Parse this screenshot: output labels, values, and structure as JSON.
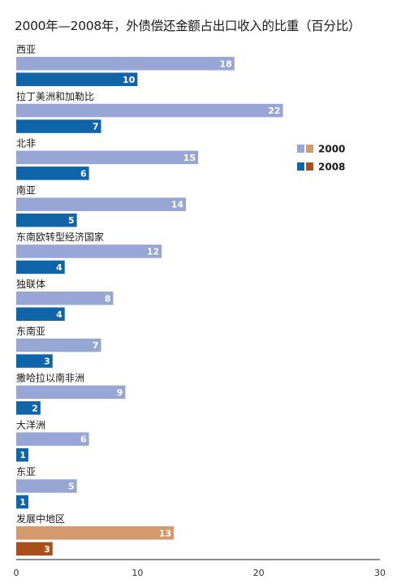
{
  "chart_data": {
    "type": "bar",
    "orientation": "horizontal",
    "title": "2000年—2008年，外债偿还金额占出口收入的比重（百分比）",
    "categories": [
      "西亚",
      "拉丁美洲和加勒比",
      "北非",
      "南亚",
      "东南欧转型经济国家",
      "独联体",
      "东南亚",
      "撒哈拉以南非洲",
      "大洋洲",
      "东亚",
      "发展中地区"
    ],
    "series": [
      {
        "name": "2000",
        "values": [
          18,
          22,
          15,
          14,
          12,
          8,
          7,
          9,
          6,
          5,
          13
        ]
      },
      {
        "name": "2008",
        "values": [
          10,
          7,
          6,
          5,
          4,
          4,
          3,
          2,
          1,
          1,
          3
        ]
      }
    ],
    "xlim": [
      0,
      30
    ],
    "xticks": [
      0,
      10,
      20,
      30
    ],
    "legend_placement": "right",
    "grid": false,
    "colors": {
      "2000": "#97a6d5",
      "2008": "#1064a8",
      "2000_highlight": "#d4996d",
      "2008_highlight": "#a84f1c",
      "axis": "#1a1a1a"
    },
    "highlight_category": "发展中地区"
  }
}
